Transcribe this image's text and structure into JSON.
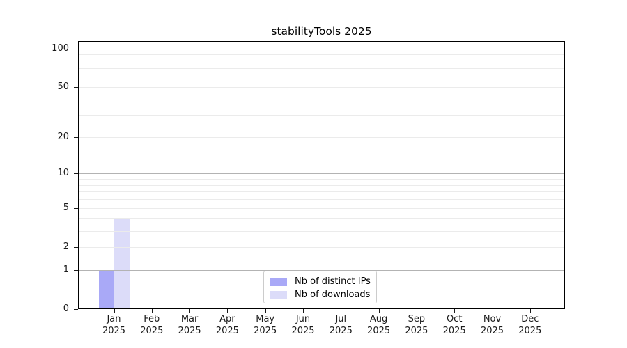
{
  "title": "stabilityTools 2025",
  "chart_data": {
    "type": "bar",
    "title": "stabilityTools 2025",
    "categories": [
      "Jan",
      "Feb",
      "Mar",
      "Apr",
      "May",
      "Jun",
      "Jul",
      "Aug",
      "Sep",
      "Oct",
      "Nov",
      "Dec"
    ],
    "category_year": "2025",
    "series": [
      {
        "name": "Nb of distinct IPs",
        "color": "#a9a9f7",
        "values": [
          1,
          0,
          0,
          0,
          0,
          0,
          0,
          0,
          0,
          0,
          0,
          0
        ]
      },
      {
        "name": "Nb of downloads",
        "color": "#dcdcf9",
        "values": [
          4,
          0,
          0,
          0,
          0,
          0,
          0,
          0,
          0,
          0,
          0,
          0
        ]
      }
    ],
    "y_axis": {
      "scale": "log1p",
      "ymax": 114,
      "tick_values": [
        0,
        1,
        2,
        5,
        10,
        20,
        50,
        100
      ],
      "tick_labels": [
        "0",
        "1",
        "2",
        "5",
        "10",
        "20",
        "50",
        "100"
      ],
      "major_gridlines": [
        1,
        10,
        100
      ],
      "minor_gridlines": [
        2,
        3,
        4,
        5,
        6,
        7,
        8,
        9,
        20,
        30,
        40,
        50,
        60,
        70,
        80,
        90
      ]
    },
    "xlabel": "",
    "ylabel": "",
    "grid": true,
    "legend_position": "bottom-center"
  },
  "colors": {
    "bar_distinct_ips": "#a9a9f7",
    "bar_downloads": "#dcdcf9",
    "grid_major": "#b3b3b3",
    "grid_minor": "#ebebeb",
    "axis_frame": "#000000",
    "legend_border": "#cccccc",
    "text": "#1a1a1a",
    "background": "#ffffff"
  }
}
